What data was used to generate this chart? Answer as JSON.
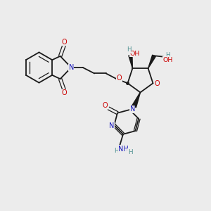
{
  "bg_color": "#ececec",
  "bond_color": "#1a1a1a",
  "n_color": "#1515bb",
  "o_color": "#cc0000",
  "h_color": "#4d9090",
  "figsize": [
    3.0,
    3.0
  ],
  "dpi": 100,
  "xlim": [
    0,
    10
  ],
  "ylim": [
    0,
    10
  ]
}
